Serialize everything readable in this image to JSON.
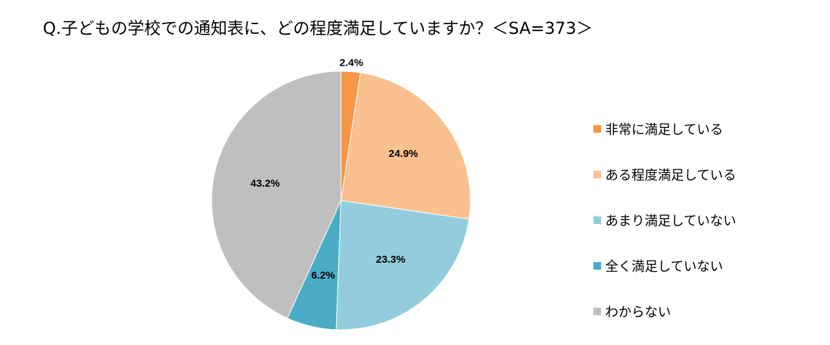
{
  "chart_data": {
    "type": "pie",
    "title": "Q.子どもの学校での通知表に、どの程度満足していますか？＜SA=373＞",
    "categories": [
      "非常に満足している",
      "ある程度満足している",
      "あまり満足していない",
      "全く満足していない",
      "わからない"
    ],
    "values": [
      2.4,
      24.9,
      23.3,
      6.2,
      43.2
    ],
    "value_labels": [
      "2.4%",
      "24.9%",
      "23.3%",
      "6.2%",
      "43.2%"
    ],
    "colors": [
      "#f79646",
      "#fac090",
      "#93cddd",
      "#4bacc6",
      "#bfbfbf"
    ],
    "legend": "right"
  }
}
